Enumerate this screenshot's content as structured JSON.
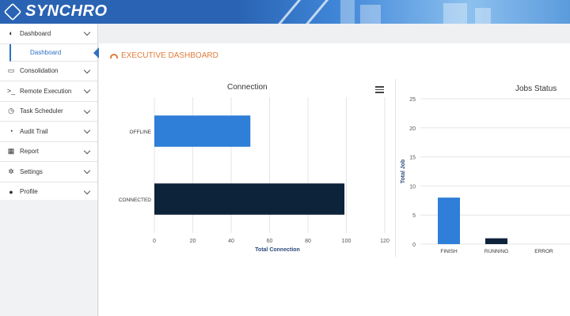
{
  "header": {
    "brand": "SYNCHRO",
    "brand_icon": "logo-mark-icon"
  },
  "sidebar": {
    "items": [
      {
        "label": "Dashboard",
        "icon": "dashboard-icon",
        "glyph": "◐",
        "expanded": true
      },
      {
        "label": "Consolidation",
        "icon": "monitor-icon",
        "glyph": "▭"
      },
      {
        "label": "Remote Execution",
        "icon": "terminal-icon",
        "glyph": ">_"
      },
      {
        "label": "Task Scheduler",
        "icon": "clock-icon",
        "glyph": "◷"
      },
      {
        "label": "Audit Trail",
        "icon": "history-icon",
        "glyph": "◔"
      },
      {
        "label": "Report",
        "icon": "table-icon",
        "glyph": "▦"
      },
      {
        "label": "Settings",
        "icon": "gears-icon",
        "glyph": "✲"
      },
      {
        "label": "Profile",
        "icon": "user-icon",
        "glyph": "●"
      }
    ],
    "subitem": {
      "label": "Dashboard"
    }
  },
  "page": {
    "title": "EXECUTIVE DASHBOARD",
    "accent": "#e07b3a"
  },
  "chart_data": [
    {
      "type": "bar",
      "orientation": "horizontal",
      "title": "Connection",
      "categories": [
        "OFFLINE",
        "CONNECTED"
      ],
      "values": [
        50,
        99
      ],
      "colors": [
        "#2f7ed8",
        "#0d233a"
      ],
      "xlabel": "Total Connection",
      "ylabel": "",
      "xlim": [
        0,
        120
      ],
      "ticks": [
        0,
        20,
        40,
        60,
        80,
        100,
        120
      ],
      "grid": true
    },
    {
      "type": "bar",
      "orientation": "vertical",
      "title": "Jobs Status",
      "categories": [
        "FINISH",
        "RUNNING",
        "ERROR"
      ],
      "values": [
        8,
        1,
        0
      ],
      "colors": [
        "#2f7ed8",
        "#0d233a",
        "#8bbc21"
      ],
      "xlabel": "",
      "ylabel": "Total Job",
      "ylim": [
        0,
        25
      ],
      "ticks": [
        0,
        5,
        10,
        15,
        20,
        25
      ],
      "grid": true
    }
  ]
}
